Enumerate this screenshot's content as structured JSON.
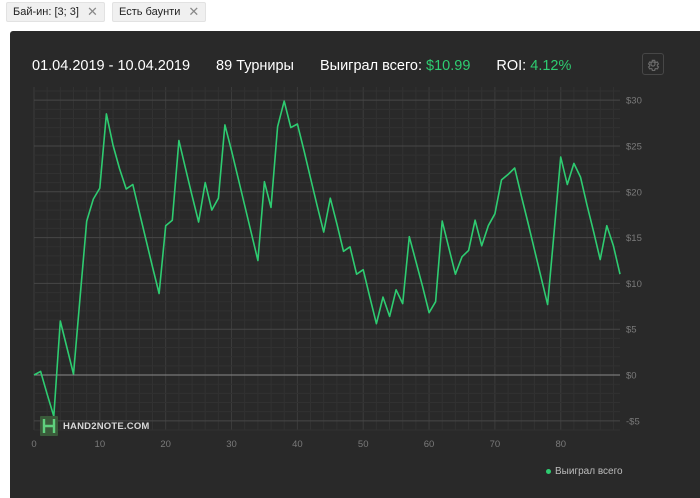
{
  "filters": [
    {
      "label": "Бай-ин: [3; 3]"
    },
    {
      "label": "Есть баунти"
    }
  ],
  "header": {
    "date_range": "01.04.2019 - 10.04.2019",
    "tournaments": "89 Турниры",
    "won_label": "Выиграл всего:",
    "won_value": "$10.99",
    "roi_label": "ROI:",
    "roi_value": "4.12%"
  },
  "watermark": {
    "text": "HAND2NOTE.COM"
  },
  "legend": {
    "label": "Выиграл всего"
  },
  "colors": {
    "line": "#2ecc71",
    "accent": "#2ecc71",
    "panel": "#292929"
  },
  "chart_data": {
    "type": "line",
    "title": "",
    "xlabel": "",
    "ylabel": "",
    "xlim": [
      0,
      89
    ],
    "ylim": [
      -6,
      31
    ],
    "x_ticks": [
      0,
      10,
      20,
      30,
      40,
      50,
      60,
      70,
      80
    ],
    "x_tick_labels": [
      "0",
      "10",
      "20",
      "30",
      "40",
      "50",
      "60",
      "70",
      "80"
    ],
    "y_ticks": [
      30,
      25,
      20,
      15,
      10,
      5,
      0,
      -5
    ],
    "y_tick_labels": [
      "$30",
      "$25",
      "$20",
      "$15",
      "$10",
      "$5",
      "$0",
      "-$5"
    ],
    "grid": true,
    "legend_position": "bottom-right",
    "series": [
      {
        "name": "Выиграл всего",
        "x": [
          0,
          1,
          2,
          3,
          4,
          5,
          6,
          7,
          8,
          9,
          10,
          11,
          12,
          13,
          14,
          15,
          16,
          17,
          18,
          19,
          20,
          21,
          22,
          23,
          24,
          25,
          26,
          27,
          28,
          29,
          30,
          31,
          32,
          33,
          34,
          35,
          36,
          37,
          38,
          39,
          40,
          41,
          42,
          43,
          44,
          45,
          46,
          47,
          48,
          49,
          50,
          51,
          52,
          53,
          54,
          55,
          56,
          57,
          58,
          59,
          60,
          61,
          62,
          63,
          64,
          65,
          66,
          67,
          68,
          69,
          70,
          71,
          72,
          73,
          74,
          75,
          76,
          77,
          78,
          79,
          80,
          81,
          82,
          83,
          84,
          85,
          86,
          87,
          88,
          89
        ],
        "values": [
          0.0,
          0.4,
          -2.1,
          -4.5,
          5.9,
          3.0,
          0.1,
          8.5,
          16.8,
          19.2,
          20.4,
          28.5,
          25.1,
          22.5,
          20.3,
          20.8,
          17.8,
          14.8,
          11.8,
          8.9,
          16.3,
          16.9,
          25.6,
          22.6,
          19.6,
          16.7,
          21.0,
          18.0,
          19.3,
          27.3,
          24.5,
          21.5,
          18.5,
          15.5,
          12.5,
          21.1,
          18.3,
          27.1,
          29.9,
          27.0,
          27.4,
          24.5,
          21.5,
          18.5,
          15.6,
          19.3,
          16.5,
          13.5,
          14.0,
          11.0,
          11.5,
          8.5,
          5.6,
          8.5,
          6.4,
          9.3,
          7.8,
          15.1,
          12.4,
          9.7,
          6.8,
          8.0,
          16.8,
          13.9,
          11.0,
          12.9,
          13.6,
          16.9,
          14.1,
          16.3,
          17.6,
          21.3,
          21.9,
          22.6,
          19.6,
          16.7,
          13.7,
          10.7,
          7.7,
          15.7,
          23.8,
          20.8,
          23.1,
          21.6,
          18.5,
          15.6,
          12.6,
          16.3,
          14.1,
          11.0
        ]
      }
    ]
  }
}
